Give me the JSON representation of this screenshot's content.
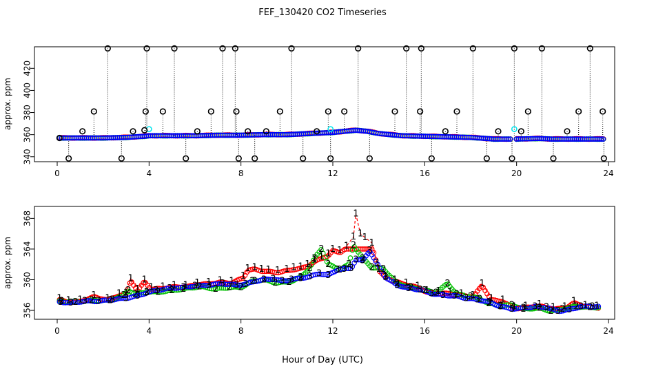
{
  "page_title": "FEF_130420  CO2 Timeseries",
  "xlabel": "Hour of Day (UTC)",
  "colors": {
    "series1": "#ff0000",
    "series2": "#00c000",
    "series3": "#0000ff",
    "cyan": "#00e5ee",
    "black": "#000000"
  },
  "chart_data": [
    {
      "type": "scatter",
      "ylabel": "approx. ppm",
      "xlim": [
        0,
        24
      ],
      "ylim": [
        338,
        437
      ],
      "xticks": [
        "0",
        "4",
        "8",
        "12",
        "16",
        "20",
        "24"
      ],
      "yticks": [
        "340",
        "360",
        "380",
        "400",
        "420"
      ],
      "grid": false,
      "legend": "none",
      "baseline": {
        "x": [
          0,
          1,
          2,
          3,
          3.8,
          4,
          5,
          6,
          7,
          8,
          9,
          10,
          11,
          12,
          12.5,
          13,
          13.5,
          14,
          15,
          16,
          17,
          18,
          19,
          19.9,
          20,
          21,
          21.5,
          22,
          23,
          23.8
        ],
        "y": [
          357,
          357,
          357,
          357.5,
          358.5,
          359,
          359,
          359,
          359.5,
          359.5,
          360,
          360,
          361,
          362,
          363,
          364,
          363,
          361,
          359,
          358.5,
          358,
          357.5,
          356,
          356,
          356,
          356.5,
          356,
          356,
          356,
          356
        ]
      },
      "spike_flags": {
        "x": [
          0.1,
          0.5,
          1.1,
          1.6,
          2.2,
          2.8,
          3.3,
          3.8,
          3.85,
          3.9,
          4.6,
          5.1,
          5.6,
          6.1,
          6.7,
          7.2,
          7.75,
          7.8,
          7.9,
          8.3,
          8.6,
          9.1,
          9.7,
          10.2,
          10.7,
          11.3,
          11.8,
          11.9,
          12.5,
          13.1,
          13.6,
          14.7,
          15.2,
          15.8,
          15.85,
          16.3,
          16.9,
          17.4,
          18.1,
          18.7,
          19.2,
          19.8,
          19.9,
          20.2,
          20.5,
          21.1,
          21.6,
          22.2,
          22.7,
          23.2,
          23.75,
          23.8
        ],
        "y": [
          357,
          338.5,
          363,
          381,
          438,
          338.5,
          363,
          364,
          381,
          438,
          381,
          438,
          338.5,
          363,
          381,
          438,
          438,
          381,
          338.5,
          363,
          338.5,
          363,
          381,
          438,
          338.5,
          363,
          381,
          338.5,
          381,
          438,
          338.5,
          381,
          438,
          381,
          438,
          338.5,
          363,
          381,
          438,
          338.5,
          363,
          338.5,
          438,
          363,
          381,
          438,
          338.5,
          363,
          381,
          438,
          381,
          338.5
        ]
      },
      "cyan_points": {
        "x": [
          4.0,
          11.9,
          19.9
        ],
        "y": [
          365,
          365,
          365
        ]
      }
    },
    {
      "type": "scatter",
      "ylabel": "approx. ppm",
      "xlim": [
        0,
        24
      ],
      "ylim": [
        355.2,
        369.2
      ],
      "xticks": [
        "0",
        "4",
        "8",
        "12",
        "16",
        "20",
        "24"
      ],
      "yticks": [
        "356",
        "360",
        "364",
        "368"
      ],
      "grid": false,
      "legend": "none",
      "series": [
        {
          "marker": "1",
          "x": [
            0.1,
            0.5,
            1.0,
            1.6,
            2.2,
            2.7,
            3.0,
            3.2,
            3.5,
            3.8,
            4.1,
            4.6,
            5.1,
            5.6,
            6.1,
            6.6,
            7.1,
            7.6,
            8.1,
            8.3,
            8.6,
            8.9,
            9.2,
            9.6,
            10.0,
            10.3,
            10.6,
            10.9,
            11.2,
            11.5,
            11.8,
            12.0,
            12.3,
            12.6,
            12.9,
            13.0,
            13.2,
            13.4,
            13.7,
            14.0,
            14.3,
            14.7,
            15.2,
            15.7,
            16.1,
            16.6,
            17.1,
            17.6,
            18.1,
            18.5,
            18.9,
            19.4,
            19.9,
            20.4,
            21.0,
            21.6,
            22.1,
            22.5,
            23.0,
            23.5
          ],
          "y": [
            357.6,
            357.3,
            357.4,
            358.0,
            357.6,
            358.2,
            358.3,
            360.2,
            358.8,
            360.0,
            359.0,
            359.1,
            359.3,
            359.3,
            359.6,
            359.7,
            359.9,
            359.8,
            360.5,
            361.5,
            361.6,
            361.4,
            361.3,
            361.2,
            361.4,
            361.6,
            361.7,
            362.0,
            362.6,
            363.0,
            363.4,
            364.0,
            363.8,
            364.4,
            365.6,
            368.6,
            366.0,
            365.5,
            364.8,
            361.4,
            360.5,
            360.0,
            359.6,
            359.2,
            358.6,
            358.5,
            358.4,
            358.2,
            358.0,
            359.5,
            357.6,
            357.4,
            356.5,
            356.6,
            356.8,
            356.4,
            356.5,
            357.2,
            356.7,
            356.6
          ]
        },
        {
          "marker": "2",
          "x": [
            0.2,
            0.8,
            1.5,
            2.3,
            2.9,
            3.1,
            3.4,
            3.9,
            4.4,
            5.0,
            5.5,
            6.2,
            6.9,
            7.5,
            8.0,
            8.5,
            9.0,
            9.5,
            10.1,
            10.6,
            11.0,
            11.2,
            11.5,
            11.8,
            12.3,
            12.7,
            12.9,
            13.3,
            13.7,
            14.2,
            14.8,
            15.4,
            16.0,
            16.5,
            17.0,
            17.4,
            18.0,
            18.4,
            18.8,
            19.3,
            19.8,
            20.3,
            21.0,
            21.5,
            22.0,
            22.6,
            23.2
          ],
          "y": [
            357.2,
            357.1,
            357.3,
            357.3,
            358.0,
            358.6,
            358.1,
            358.4,
            358.4,
            358.6,
            358.8,
            359.1,
            358.8,
            359.0,
            359.0,
            359.8,
            360.0,
            359.6,
            359.7,
            360.3,
            361.5,
            362.8,
            364.0,
            362.0,
            361.3,
            362.0,
            364.5,
            362.8,
            361.6,
            361.4,
            359.5,
            359.0,
            358.6,
            358.3,
            359.5,
            358.1,
            357.8,
            357.5,
            356.9,
            356.6,
            356.7,
            356.2,
            356.3,
            355.9,
            356.2,
            356.5,
            356.4
          ]
        },
        {
          "marker": "3",
          "x": [
            0.15,
            0.6,
            1.2,
            1.8,
            2.4,
            3.0,
            3.5,
            3.9,
            4.3,
            4.9,
            5.5,
            6.0,
            6.6,
            7.2,
            7.8,
            8.2,
            8.6,
            9.0,
            9.4,
            9.8,
            10.2,
            10.6,
            11.0,
            11.4,
            11.8,
            12.2,
            12.5,
            12.8,
            13.0,
            13.3,
            13.6,
            13.9,
            14.3,
            14.8,
            15.3,
            15.8,
            16.3,
            16.8,
            17.3,
            17.8,
            18.3,
            18.8,
            19.3,
            19.8,
            20.3,
            20.8,
            21.3,
            21.8,
            22.3,
            22.8,
            23.3
          ],
          "y": [
            357.1,
            357.0,
            357.2,
            357.2,
            357.4,
            357.6,
            357.9,
            358.3,
            358.6,
            358.9,
            359.0,
            359.2,
            359.3,
            359.5,
            359.3,
            359.4,
            359.8,
            360.0,
            360.1,
            359.8,
            360.0,
            360.2,
            360.4,
            360.8,
            360.6,
            361.3,
            361.4,
            361.5,
            362.6,
            362.5,
            363.8,
            362.2,
            360.3,
            359.3,
            358.9,
            358.7,
            358.2,
            358.0,
            357.9,
            357.6,
            357.4,
            357.1,
            356.5,
            356.2,
            356.3,
            356.5,
            356.4,
            355.9,
            356.1,
            356.5,
            356.5
          ]
        }
      ]
    }
  ]
}
